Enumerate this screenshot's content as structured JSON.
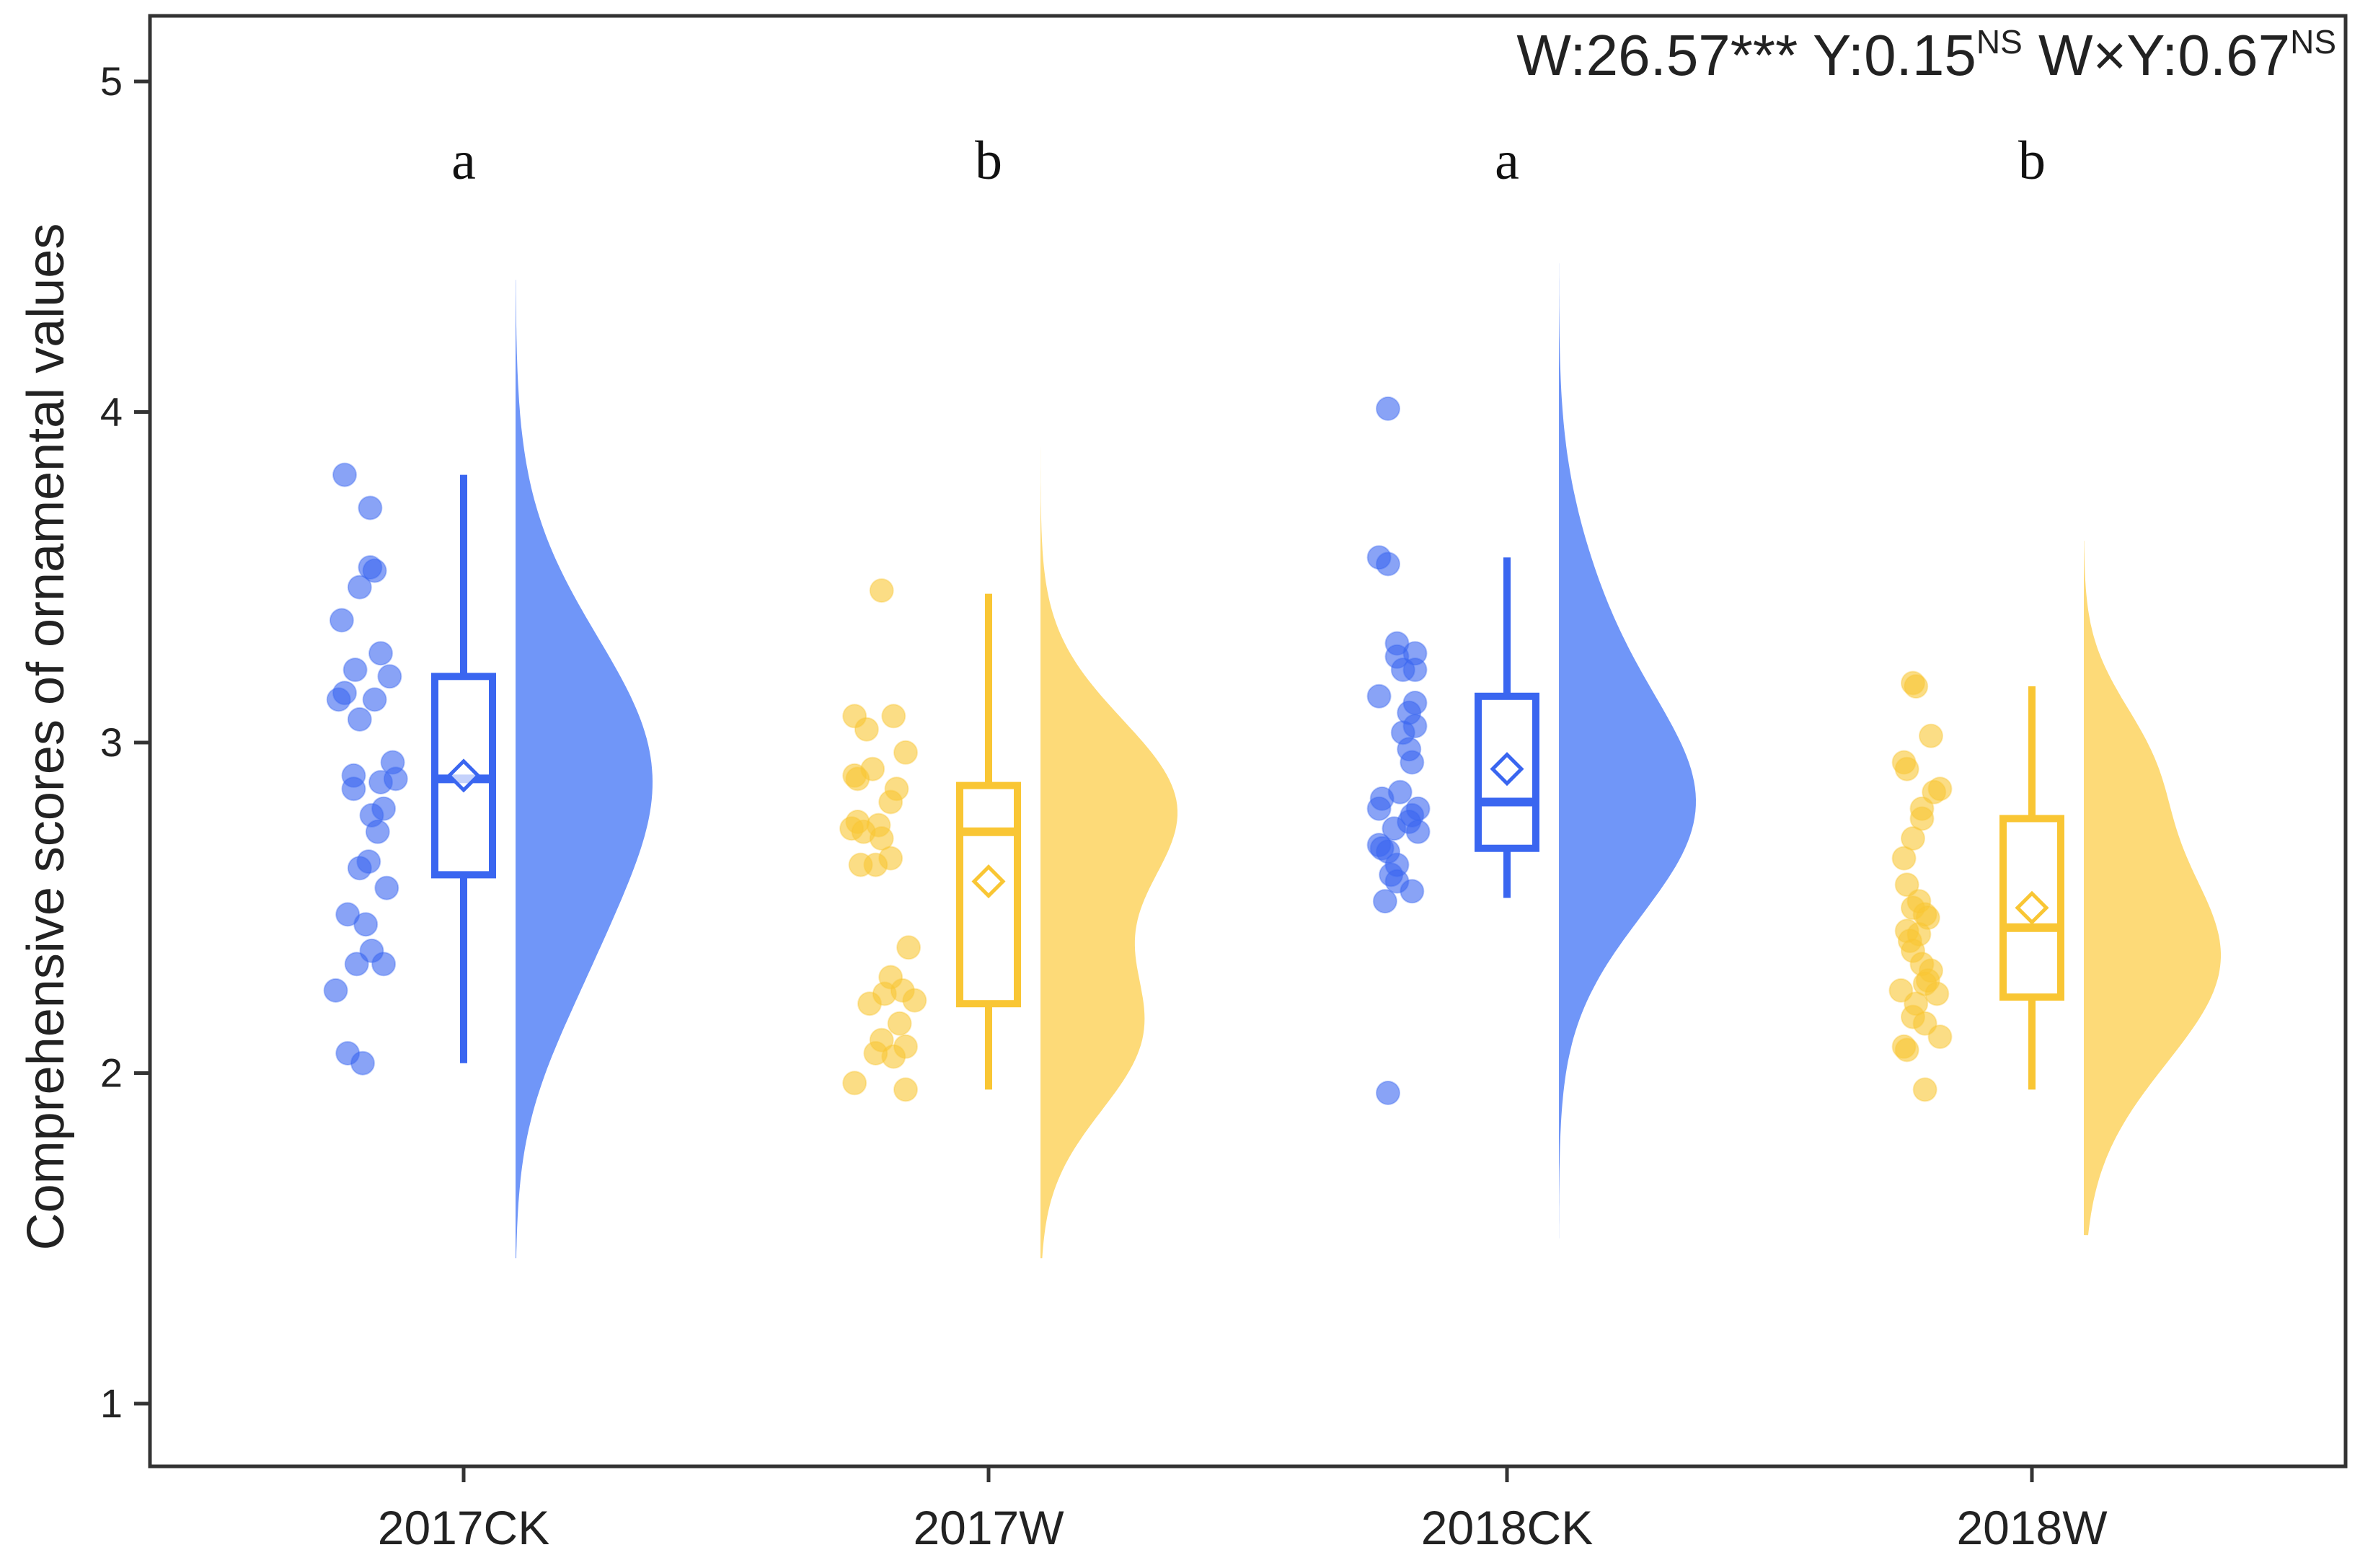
{
  "chart_data": {
    "type": "raincloud",
    "title": "",
    "xlabel": "",
    "ylabel": "Comprehensive scores of ornamental values",
    "ylim": [
      0.9,
      5.2
    ],
    "yticks": [
      1,
      2,
      3,
      4,
      5
    ],
    "categories": [
      "2017CK",
      "2017W",
      "2018CK",
      "2018W"
    ],
    "colors": {
      "CK": "#3a66f0",
      "W": "#f9c634",
      "CK_fill": "#7096f8",
      "W_fill": "#fdda78"
    },
    "stats": {
      "text": "W:26.57*** Y:0.15",
      "sup1": "NS",
      "text2": " W×Y:0.67",
      "sup2": "NS"
    },
    "groups": [
      {
        "name": "2017CK",
        "color_key": "CK",
        "letter": "a",
        "box": {
          "min": 2.03,
          "q1": 2.6,
          "median": 2.89,
          "q3": 3.2,
          "max": 3.81,
          "mean": 2.9
        },
        "density": {
          "range": [
            1.44,
            4.4
          ],
          "peaks": [
            [
              2.9,
              1.0,
              0.42
            ],
            [
              2.25,
              0.18,
              0.28
            ]
          ]
        },
        "points": [
          [
            3.81,
            -0.12
          ],
          [
            3.71,
            0.05
          ],
          [
            3.53,
            0.05
          ],
          [
            3.52,
            0.08
          ],
          [
            3.47,
            -0.02
          ],
          [
            3.37,
            -0.14
          ],
          [
            3.27,
            0.12
          ],
          [
            3.22,
            -0.05
          ],
          [
            3.2,
            0.18
          ],
          [
            3.15,
            -0.12
          ],
          [
            3.13,
            0.08
          ],
          [
            3.13,
            -0.16
          ],
          [
            3.07,
            -0.02
          ],
          [
            2.94,
            0.2
          ],
          [
            2.9,
            -0.06
          ],
          [
            2.89,
            0.22
          ],
          [
            2.88,
            0.12
          ],
          [
            2.86,
            -0.06
          ],
          [
            2.8,
            0.14
          ],
          [
            2.78,
            0.06
          ],
          [
            2.73,
            0.1
          ],
          [
            2.64,
            0.04
          ],
          [
            2.62,
            -0.02
          ],
          [
            2.56,
            0.16
          ],
          [
            2.48,
            -0.1
          ],
          [
            2.45,
            0.02
          ],
          [
            2.37,
            0.06
          ],
          [
            2.33,
            0.14
          ],
          [
            2.33,
            -0.04
          ],
          [
            2.25,
            -0.18
          ],
          [
            2.06,
            -0.1
          ],
          [
            2.03,
            0.0
          ]
        ]
      },
      {
        "name": "2017W",
        "color_key": "W",
        "letter": "b",
        "box": {
          "min": 1.95,
          "q1": 2.21,
          "median": 2.73,
          "q3": 2.87,
          "max": 3.45,
          "mean": 2.58
        },
        "density": {
          "range": [
            1.44,
            3.96
          ],
          "peaks": [
            [
              2.8,
              1.0,
              0.27
            ],
            [
              2.12,
              0.72,
              0.24
            ]
          ]
        },
        "points": [
          [
            3.46,
            -0.04
          ],
          [
            3.08,
            -0.22
          ],
          [
            3.08,
            0.04
          ],
          [
            3.04,
            -0.14
          ],
          [
            2.97,
            0.12
          ],
          [
            2.92,
            -0.1
          ],
          [
            2.9,
            -0.22
          ],
          [
            2.89,
            -0.2
          ],
          [
            2.86,
            0.06
          ],
          [
            2.82,
            0.02
          ],
          [
            2.76,
            -0.2
          ],
          [
            2.75,
            -0.06
          ],
          [
            2.74,
            -0.24
          ],
          [
            2.73,
            -0.16
          ],
          [
            2.71,
            -0.04
          ],
          [
            2.65,
            0.02
          ],
          [
            2.63,
            -0.08
          ],
          [
            2.63,
            -0.18
          ],
          [
            2.38,
            0.14
          ],
          [
            2.29,
            0.02
          ],
          [
            2.25,
            0.1
          ],
          [
            2.24,
            -0.02
          ],
          [
            2.22,
            0.18
          ],
          [
            2.21,
            -0.12
          ],
          [
            2.15,
            0.08
          ],
          [
            2.1,
            -0.04
          ],
          [
            2.08,
            0.12
          ],
          [
            2.06,
            -0.08
          ],
          [
            2.05,
            0.04
          ],
          [
            1.97,
            -0.22
          ],
          [
            1.95,
            0.12
          ]
        ]
      },
      {
        "name": "2018CK",
        "color_key": "CK",
        "letter": "a",
        "box": {
          "min": 2.53,
          "q1": 2.68,
          "median": 2.82,
          "q3": 3.14,
          "max": 3.56,
          "mean": 2.92
        },
        "density": {
          "range": [
            1.5,
            4.45
          ],
          "peaks": [
            [
              2.8,
              1.0,
              0.33
            ],
            [
              3.4,
              0.2,
              0.3
            ]
          ]
        },
        "points": [
          [
            4.01,
            -0.12
          ],
          [
            3.56,
            -0.18
          ],
          [
            3.54,
            -0.12
          ],
          [
            3.3,
            -0.06
          ],
          [
            3.27,
            0.06
          ],
          [
            3.26,
            -0.06
          ],
          [
            3.22,
            0.06
          ],
          [
            3.22,
            -0.02
          ],
          [
            3.14,
            -0.18
          ],
          [
            3.12,
            0.06
          ],
          [
            3.09,
            0.02
          ],
          [
            3.05,
            0.06
          ],
          [
            3.03,
            -0.02
          ],
          [
            2.98,
            0.02
          ],
          [
            2.94,
            0.04
          ],
          [
            2.85,
            -0.04
          ],
          [
            2.83,
            -0.16
          ],
          [
            2.8,
            -0.18
          ],
          [
            2.8,
            0.08
          ],
          [
            2.78,
            0.04
          ],
          [
            2.76,
            0.02
          ],
          [
            2.74,
            -0.08
          ],
          [
            2.73,
            0.08
          ],
          [
            2.69,
            -0.18
          ],
          [
            2.68,
            -0.16
          ],
          [
            2.67,
            -0.12
          ],
          [
            2.63,
            -0.06
          ],
          [
            2.6,
            -0.1
          ],
          [
            2.58,
            -0.06
          ],
          [
            2.55,
            0.04
          ],
          [
            2.52,
            -0.14
          ],
          [
            1.94,
            -0.12
          ]
        ]
      },
      {
        "name": "2018W",
        "color_key": "W",
        "letter": "b",
        "box": {
          "min": 1.95,
          "q1": 2.23,
          "median": 2.44,
          "q3": 2.77,
          "max": 3.17,
          "mean": 2.5
        },
        "density": {
          "range": [
            1.51,
            3.61
          ],
          "peaks": [
            [
              2.35,
              1.0,
              0.32
            ],
            [
              2.95,
              0.35,
              0.2
            ]
          ]
        },
        "points": [
          [
            3.18,
            -0.12
          ],
          [
            3.17,
            -0.1
          ],
          [
            3.02,
            0.0
          ],
          [
            2.94,
            -0.18
          ],
          [
            2.92,
            -0.16
          ],
          [
            2.86,
            0.06
          ],
          [
            2.85,
            0.02
          ],
          [
            2.8,
            -0.06
          ],
          [
            2.77,
            -0.06
          ],
          [
            2.71,
            -0.12
          ],
          [
            2.65,
            -0.18
          ],
          [
            2.57,
            -0.16
          ],
          [
            2.52,
            -0.08
          ],
          [
            2.5,
            -0.12
          ],
          [
            2.48,
            -0.04
          ],
          [
            2.47,
            -0.02
          ],
          [
            2.43,
            -0.16
          ],
          [
            2.42,
            -0.08
          ],
          [
            2.4,
            -0.14
          ],
          [
            2.37,
            -0.12
          ],
          [
            2.33,
            -0.06
          ],
          [
            2.31,
            0.0
          ],
          [
            2.28,
            -0.02
          ],
          [
            2.27,
            -0.04
          ],
          [
            2.25,
            -0.2
          ],
          [
            2.24,
            0.04
          ],
          [
            2.21,
            -0.1
          ],
          [
            2.17,
            -0.12
          ],
          [
            2.15,
            -0.04
          ],
          [
            2.11,
            0.06
          ],
          [
            2.08,
            -0.18
          ],
          [
            2.07,
            -0.16
          ],
          [
            1.95,
            -0.04
          ]
        ]
      }
    ]
  }
}
